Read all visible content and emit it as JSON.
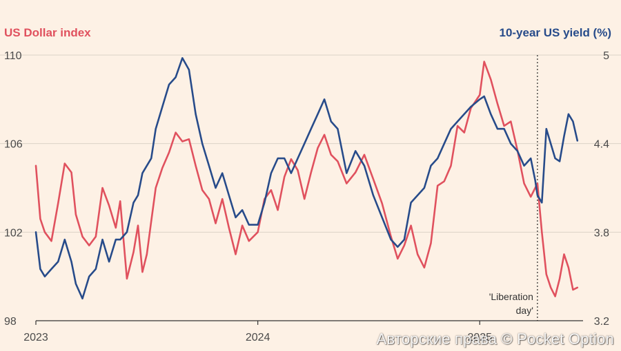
{
  "chart_data": {
    "type": "line",
    "title_left": "US Dollar index",
    "title_right": "10-year US yield (%)",
    "x_tick_labels": [
      "2023",
      "2024",
      "2025"
    ],
    "x_range": [
      2023.0,
      2025.45
    ],
    "left_axis": {
      "ylim": [
        98,
        110
      ],
      "ticks": [
        "98",
        "102",
        "106",
        "110"
      ]
    },
    "right_axis": {
      "ylim": [
        3.2,
        5.0
      ],
      "ticks": [
        "3.2",
        "3.8",
        "4.4",
        "5"
      ]
    },
    "annotation": {
      "lines": [
        "'Liberation",
        "day'"
      ],
      "x": 2025.26
    },
    "series": [
      {
        "name": "US Dollar index",
        "axis": "left",
        "color": "#e0515e",
        "x": [
          2023.0,
          2023.02,
          2023.04,
          2023.07,
          2023.1,
          2023.13,
          2023.16,
          2023.18,
          2023.21,
          2023.24,
          2023.27,
          2023.3,
          2023.33,
          2023.36,
          2023.38,
          2023.41,
          2023.44,
          2023.46,
          2023.48,
          2023.5,
          2023.52,
          2023.54,
          2023.57,
          2023.6,
          2023.63,
          2023.66,
          2023.69,
          2023.72,
          2023.75,
          2023.78,
          2023.81,
          2023.84,
          2023.87,
          2023.9,
          2023.93,
          2023.96,
          2024.0,
          2024.03,
          2024.06,
          2024.09,
          2024.12,
          2024.15,
          2024.18,
          2024.21,
          2024.24,
          2024.27,
          2024.3,
          2024.33,
          2024.36,
          2024.4,
          2024.44,
          2024.48,
          2024.52,
          2024.56,
          2024.6,
          2024.63,
          2024.66,
          2024.69,
          2024.72,
          2024.75,
          2024.78,
          2024.81,
          2024.84,
          2024.87,
          2024.9,
          2024.93,
          2024.96,
          2025.0,
          2025.02,
          2025.05,
          2025.08,
          2025.11,
          2025.14,
          2025.17,
          2025.2,
          2025.23,
          2025.25,
          2025.26,
          2025.28,
          2025.3,
          2025.32,
          2025.34,
          2025.36,
          2025.38,
          2025.4,
          2025.42,
          2025.44
        ],
        "values": [
          105.0,
          102.6,
          102.0,
          101.6,
          103.3,
          105.1,
          104.7,
          102.8,
          101.8,
          101.4,
          101.8,
          104.0,
          103.2,
          102.2,
          103.4,
          99.9,
          101.1,
          102.3,
          100.2,
          101.0,
          102.5,
          104.0,
          104.9,
          105.6,
          106.5,
          106.1,
          106.2,
          105.0,
          103.9,
          103.5,
          102.4,
          103.5,
          102.2,
          101.0,
          102.3,
          101.6,
          102.0,
          103.5,
          103.9,
          103.0,
          104.5,
          105.3,
          104.8,
          103.5,
          104.7,
          105.8,
          106.4,
          105.5,
          105.2,
          104.2,
          104.7,
          105.5,
          104.4,
          103.3,
          101.8,
          100.8,
          101.4,
          102.3,
          101.0,
          100.4,
          101.5,
          104.1,
          104.3,
          105.0,
          106.8,
          106.5,
          107.6,
          108.2,
          109.7,
          108.9,
          107.8,
          106.8,
          107.0,
          105.7,
          104.2,
          103.6,
          104.0,
          104.2,
          102.0,
          100.1,
          99.5,
          99.1,
          99.9,
          101.0,
          100.4,
          99.4,
          99.5
        ]
      },
      {
        "name": "10-year US yield (%)",
        "axis": "right",
        "color": "#274b8a",
        "x": [
          2023.0,
          2023.02,
          2023.04,
          2023.07,
          2023.1,
          2023.13,
          2023.16,
          2023.18,
          2023.21,
          2023.24,
          2023.27,
          2023.3,
          2023.33,
          2023.36,
          2023.38,
          2023.41,
          2023.44,
          2023.46,
          2023.48,
          2023.5,
          2023.52,
          2023.54,
          2023.57,
          2023.6,
          2023.63,
          2023.66,
          2023.69,
          2023.72,
          2023.75,
          2023.78,
          2023.81,
          2023.84,
          2023.87,
          2023.9,
          2023.93,
          2023.96,
          2024.0,
          2024.03,
          2024.06,
          2024.09,
          2024.12,
          2024.15,
          2024.18,
          2024.21,
          2024.24,
          2024.27,
          2024.3,
          2024.33,
          2024.36,
          2024.4,
          2024.44,
          2024.48,
          2024.52,
          2024.56,
          2024.6,
          2024.63,
          2024.66,
          2024.69,
          2024.72,
          2024.75,
          2024.78,
          2024.81,
          2024.84,
          2024.87,
          2024.9,
          2024.93,
          2024.96,
          2025.0,
          2025.02,
          2025.05,
          2025.08,
          2025.11,
          2025.14,
          2025.17,
          2025.2,
          2025.23,
          2025.25,
          2025.26,
          2025.28,
          2025.3,
          2025.32,
          2025.34,
          2025.36,
          2025.38,
          2025.4,
          2025.42,
          2025.44
        ],
        "values": [
          3.8,
          3.55,
          3.5,
          3.55,
          3.6,
          3.75,
          3.6,
          3.45,
          3.35,
          3.5,
          3.55,
          3.75,
          3.6,
          3.75,
          3.75,
          3.8,
          4.0,
          4.05,
          4.2,
          4.25,
          4.3,
          4.5,
          4.65,
          4.8,
          4.85,
          4.98,
          4.9,
          4.6,
          4.4,
          4.25,
          4.1,
          4.2,
          4.05,
          3.9,
          3.95,
          3.85,
          3.85,
          4.0,
          4.2,
          4.3,
          4.3,
          4.2,
          4.3,
          4.4,
          4.5,
          4.6,
          4.7,
          4.55,
          4.5,
          4.2,
          4.35,
          4.25,
          4.05,
          3.9,
          3.75,
          3.7,
          3.75,
          4.0,
          4.05,
          4.1,
          4.25,
          4.3,
          4.4,
          4.5,
          4.55,
          4.6,
          4.65,
          4.7,
          4.72,
          4.6,
          4.5,
          4.5,
          4.4,
          4.35,
          4.25,
          4.3,
          4.15,
          4.05,
          4.0,
          4.5,
          4.4,
          4.3,
          4.28,
          4.45,
          4.6,
          4.55,
          4.42
        ]
      }
    ]
  },
  "watermark": "Авторские права © Pocket Option"
}
